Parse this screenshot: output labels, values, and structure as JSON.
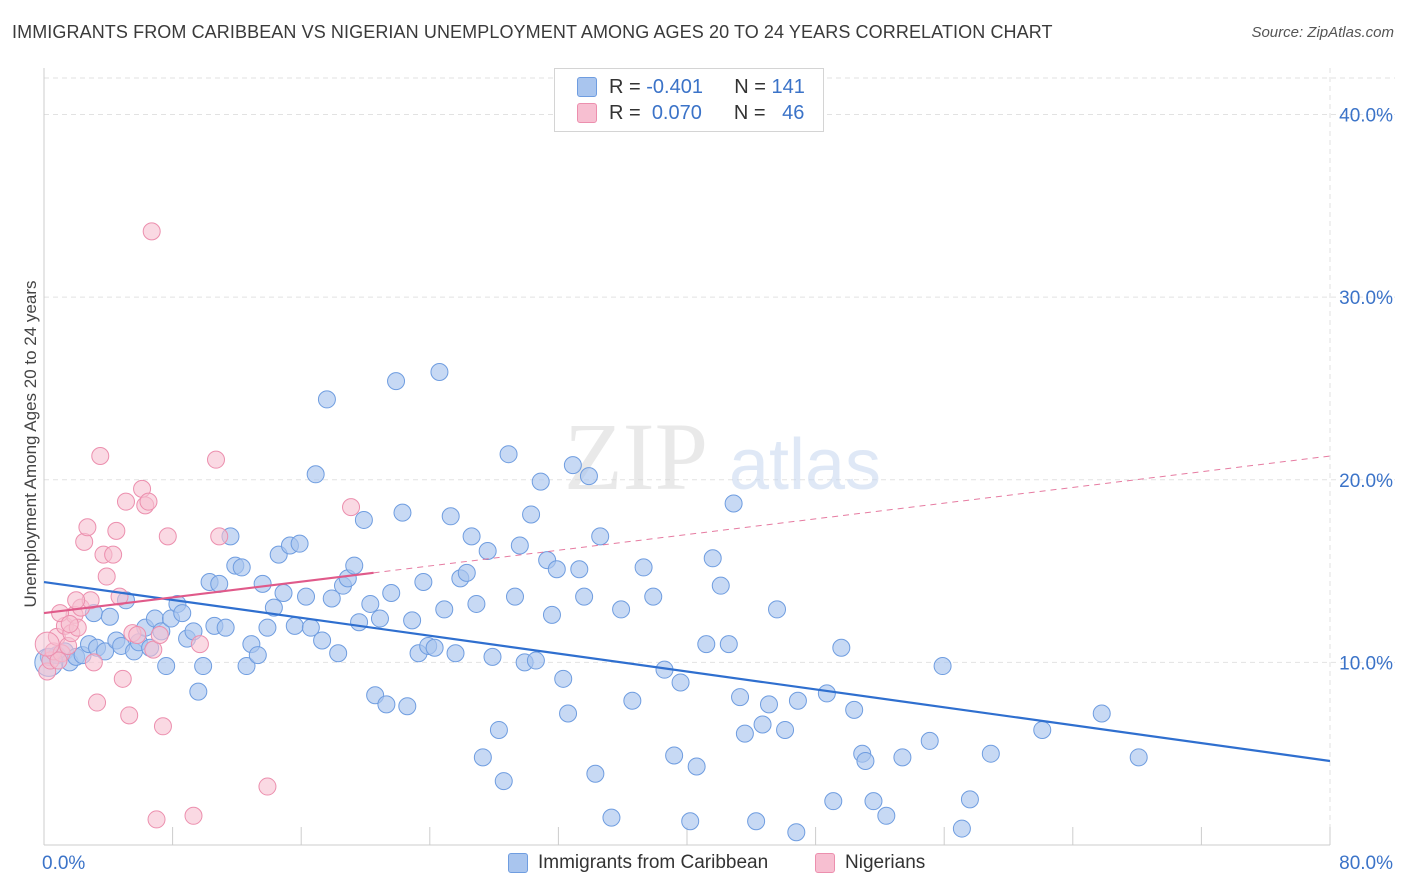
{
  "title": "IMMIGRANTS FROM CARIBBEAN VS NIGERIAN UNEMPLOYMENT AMONG AGES 20 TO 24 YEARS CORRELATION CHART",
  "source": "Source: ZipAtlas.com",
  "watermark": {
    "zip": "ZIP",
    "atlas": "atlas"
  },
  "colors": {
    "blue_fill": "#a9c5ee",
    "blue_stroke": "#6f9de0",
    "blue_line": "#2f6fcf",
    "pink_fill": "#f7bfd1",
    "pink_stroke": "#ec8fae",
    "pink_line": "#e05a8a",
    "axis_text": "#3b73c8"
  },
  "legend_top": {
    "rows": [
      {
        "r_label": "R =",
        "r_value": "-0.401",
        "n_label": "N =",
        "n_value": "141"
      },
      {
        "r_label": "R =",
        "r_value": "0.070",
        "n_label": "N =",
        "n_value": "46"
      }
    ]
  },
  "legend_bottom": [
    "Immigrants from Caribbean",
    "Nigerians"
  ],
  "chart_data": {
    "type": "scatter",
    "title": "IMMIGRANTS FROM CARIBBEAN VS NIGERIAN UNEMPLOYMENT AMONG AGES 20 TO 24 YEARS CORRELATION CHART",
    "xlabel": "",
    "ylabel": "Unemployment Among Ages 20 to 24 years",
    "xlim": [
      0,
      80
    ],
    "ylim": [
      0,
      42
    ],
    "x_tick_labels": [
      {
        "value": 0,
        "label": "0.0%"
      },
      {
        "value": 80,
        "label": "80.0%"
      }
    ],
    "y_tick_labels": [
      {
        "value": 10,
        "label": "10.0%"
      },
      {
        "value": 20,
        "label": "20.0%"
      },
      {
        "value": 30,
        "label": "30.0%"
      },
      {
        "value": 40,
        "label": "40.0%"
      }
    ],
    "grid": true,
    "legend": "top-center",
    "series": [
      {
        "name": "Immigrants from Caribbean",
        "r": -0.401,
        "n": 141,
        "trend": {
          "x": [
            0,
            80
          ],
          "y": [
            14.4,
            4.6
          ]
        },
        "points": [
          [
            0.3,
            10.3
          ],
          [
            0.8,
            10.4
          ],
          [
            1.3,
            10.6
          ],
          [
            1.6,
            10.0
          ],
          [
            2.0,
            10.3
          ],
          [
            2.4,
            10.4
          ],
          [
            2.8,
            11.0
          ],
          [
            3.1,
            12.7
          ],
          [
            3.3,
            10.8
          ],
          [
            3.8,
            10.6
          ],
          [
            4.1,
            12.5
          ],
          [
            4.5,
            11.2
          ],
          [
            4.8,
            10.9
          ],
          [
            5.1,
            13.4
          ],
          [
            5.6,
            10.6
          ],
          [
            5.9,
            11.1
          ],
          [
            6.3,
            11.9
          ],
          [
            6.6,
            10.8
          ],
          [
            6.9,
            12.4
          ],
          [
            7.3,
            11.7
          ],
          [
            7.6,
            9.8
          ],
          [
            7.9,
            12.4
          ],
          [
            8.3,
            13.2
          ],
          [
            8.6,
            12.7
          ],
          [
            8.9,
            11.3
          ],
          [
            9.3,
            11.7
          ],
          [
            9.6,
            8.4
          ],
          [
            9.9,
            9.8
          ],
          [
            10.3,
            14.4
          ],
          [
            10.6,
            12.0
          ],
          [
            10.9,
            14.3
          ],
          [
            11.3,
            11.9
          ],
          [
            11.6,
            16.9
          ],
          [
            11.9,
            15.3
          ],
          [
            12.3,
            15.2
          ],
          [
            12.6,
            9.8
          ],
          [
            12.9,
            11.0
          ],
          [
            13.3,
            10.4
          ],
          [
            13.6,
            14.3
          ],
          [
            13.9,
            11.9
          ],
          [
            14.3,
            13.0
          ],
          [
            14.6,
            15.9
          ],
          [
            14.9,
            13.8
          ],
          [
            15.3,
            16.4
          ],
          [
            15.6,
            12.0
          ],
          [
            15.9,
            16.5
          ],
          [
            16.3,
            13.6
          ],
          [
            16.6,
            11.9
          ],
          [
            16.9,
            20.3
          ],
          [
            17.3,
            11.2
          ],
          [
            17.6,
            24.4
          ],
          [
            17.9,
            13.5
          ],
          [
            18.3,
            10.5
          ],
          [
            18.6,
            14.2
          ],
          [
            18.9,
            14.6
          ],
          [
            19.3,
            15.3
          ],
          [
            19.6,
            12.2
          ],
          [
            19.9,
            17.8
          ],
          [
            20.3,
            13.2
          ],
          [
            20.6,
            8.2
          ],
          [
            20.9,
            12.4
          ],
          [
            21.3,
            7.7
          ],
          [
            21.6,
            13.8
          ],
          [
            21.9,
            25.4
          ],
          [
            22.3,
            18.2
          ],
          [
            22.6,
            7.6
          ],
          [
            22.9,
            12.3
          ],
          [
            23.3,
            10.5
          ],
          [
            23.6,
            14.4
          ],
          [
            23.9,
            10.9
          ],
          [
            24.3,
            10.8
          ],
          [
            24.6,
            25.9
          ],
          [
            24.9,
            12.9
          ],
          [
            25.3,
            18.0
          ],
          [
            25.6,
            10.5
          ],
          [
            25.9,
            14.6
          ],
          [
            26.3,
            14.9
          ],
          [
            26.6,
            16.9
          ],
          [
            26.9,
            13.2
          ],
          [
            27.3,
            4.8
          ],
          [
            27.6,
            16.1
          ],
          [
            27.9,
            10.3
          ],
          [
            28.3,
            6.3
          ],
          [
            28.6,
            3.5
          ],
          [
            28.9,
            21.4
          ],
          [
            29.3,
            13.6
          ],
          [
            29.6,
            16.4
          ],
          [
            29.9,
            10.0
          ],
          [
            30.3,
            18.1
          ],
          [
            30.6,
            10.1
          ],
          [
            30.9,
            19.9
          ],
          [
            31.3,
            15.6
          ],
          [
            31.6,
            12.6
          ],
          [
            31.9,
            15.1
          ],
          [
            32.3,
            9.1
          ],
          [
            32.6,
            7.2
          ],
          [
            32.9,
            20.8
          ],
          [
            33.3,
            15.1
          ],
          [
            33.6,
            13.6
          ],
          [
            33.9,
            20.2
          ],
          [
            34.3,
            3.9
          ],
          [
            34.6,
            16.9
          ],
          [
            35.3,
            1.5
          ],
          [
            35.9,
            12.9
          ],
          [
            36.6,
            7.9
          ],
          [
            37.3,
            15.2
          ],
          [
            37.9,
            13.6
          ],
          [
            38.6,
            9.6
          ],
          [
            39.2,
            4.9
          ],
          [
            39.6,
            8.9
          ],
          [
            40.2,
            1.3
          ],
          [
            40.6,
            4.3
          ],
          [
            41.2,
            11.0
          ],
          [
            41.6,
            15.7
          ],
          [
            42.1,
            14.2
          ],
          [
            42.6,
            11.0
          ],
          [
            42.9,
            18.7
          ],
          [
            43.3,
            8.1
          ],
          [
            43.6,
            6.1
          ],
          [
            44.3,
            1.3
          ],
          [
            44.7,
            6.6
          ],
          [
            45.1,
            7.7
          ],
          [
            45.6,
            12.9
          ],
          [
            46.1,
            6.3
          ],
          [
            46.8,
            0.7
          ],
          [
            46.9,
            7.9
          ],
          [
            48.7,
            8.3
          ],
          [
            49.1,
            2.4
          ],
          [
            49.6,
            10.8
          ],
          [
            50.4,
            7.4
          ],
          [
            50.9,
            5.0
          ],
          [
            51.1,
            4.6
          ],
          [
            51.6,
            2.4
          ],
          [
            52.4,
            1.6
          ],
          [
            53.4,
            4.8
          ],
          [
            55.1,
            5.7
          ],
          [
            55.9,
            9.8
          ],
          [
            57.1,
            0.9
          ],
          [
            57.6,
            2.5
          ],
          [
            58.9,
            5.0
          ],
          [
            62.1,
            6.3
          ],
          [
            65.8,
            7.2
          ],
          [
            68.1,
            4.8
          ]
        ]
      },
      {
        "name": "Nigerians",
        "r": 0.07,
        "n": 46,
        "trend": {
          "x": [
            0,
            80
          ],
          "y": [
            12.7,
            21.3
          ]
        },
        "trend_solid_x_max": 20.5,
        "points": [
          [
            0.2,
            9.5
          ],
          [
            0.4,
            10.1
          ],
          [
            0.6,
            10.6
          ],
          [
            0.8,
            11.4
          ],
          [
            1.1,
            10.5
          ],
          [
            1.3,
            12.0
          ],
          [
            1.5,
            10.9
          ],
          [
            1.7,
            11.6
          ],
          [
            1.9,
            12.6
          ],
          [
            2.1,
            11.9
          ],
          [
            2.3,
            13.0
          ],
          [
            2.5,
            16.6
          ],
          [
            2.7,
            17.4
          ],
          [
            2.9,
            13.4
          ],
          [
            3.1,
            10.0
          ],
          [
            3.3,
            7.8
          ],
          [
            3.5,
            21.3
          ],
          [
            3.7,
            15.9
          ],
          [
            3.9,
            14.7
          ],
          [
            4.3,
            15.9
          ],
          [
            4.5,
            17.2
          ],
          [
            4.7,
            13.6
          ],
          [
            4.9,
            9.1
          ],
          [
            5.1,
            18.8
          ],
          [
            5.3,
            7.1
          ],
          [
            5.5,
            11.6
          ],
          [
            5.8,
            11.5
          ],
          [
            6.1,
            19.5
          ],
          [
            6.3,
            18.6
          ],
          [
            6.5,
            18.8
          ],
          [
            6.7,
            33.6
          ],
          [
            6.8,
            10.7
          ],
          [
            7.0,
            1.4
          ],
          [
            7.2,
            11.5
          ],
          [
            7.4,
            6.5
          ],
          [
            7.7,
            16.9
          ],
          [
            9.3,
            1.6
          ],
          [
            9.7,
            11.0
          ],
          [
            10.7,
            21.1
          ],
          [
            10.9,
            16.9
          ],
          [
            13.9,
            3.2
          ],
          [
            19.1,
            18.5
          ],
          [
            1.0,
            12.7
          ],
          [
            1.6,
            12.1
          ],
          [
            0.9,
            10.1
          ],
          [
            2.0,
            13.4
          ]
        ]
      }
    ]
  }
}
